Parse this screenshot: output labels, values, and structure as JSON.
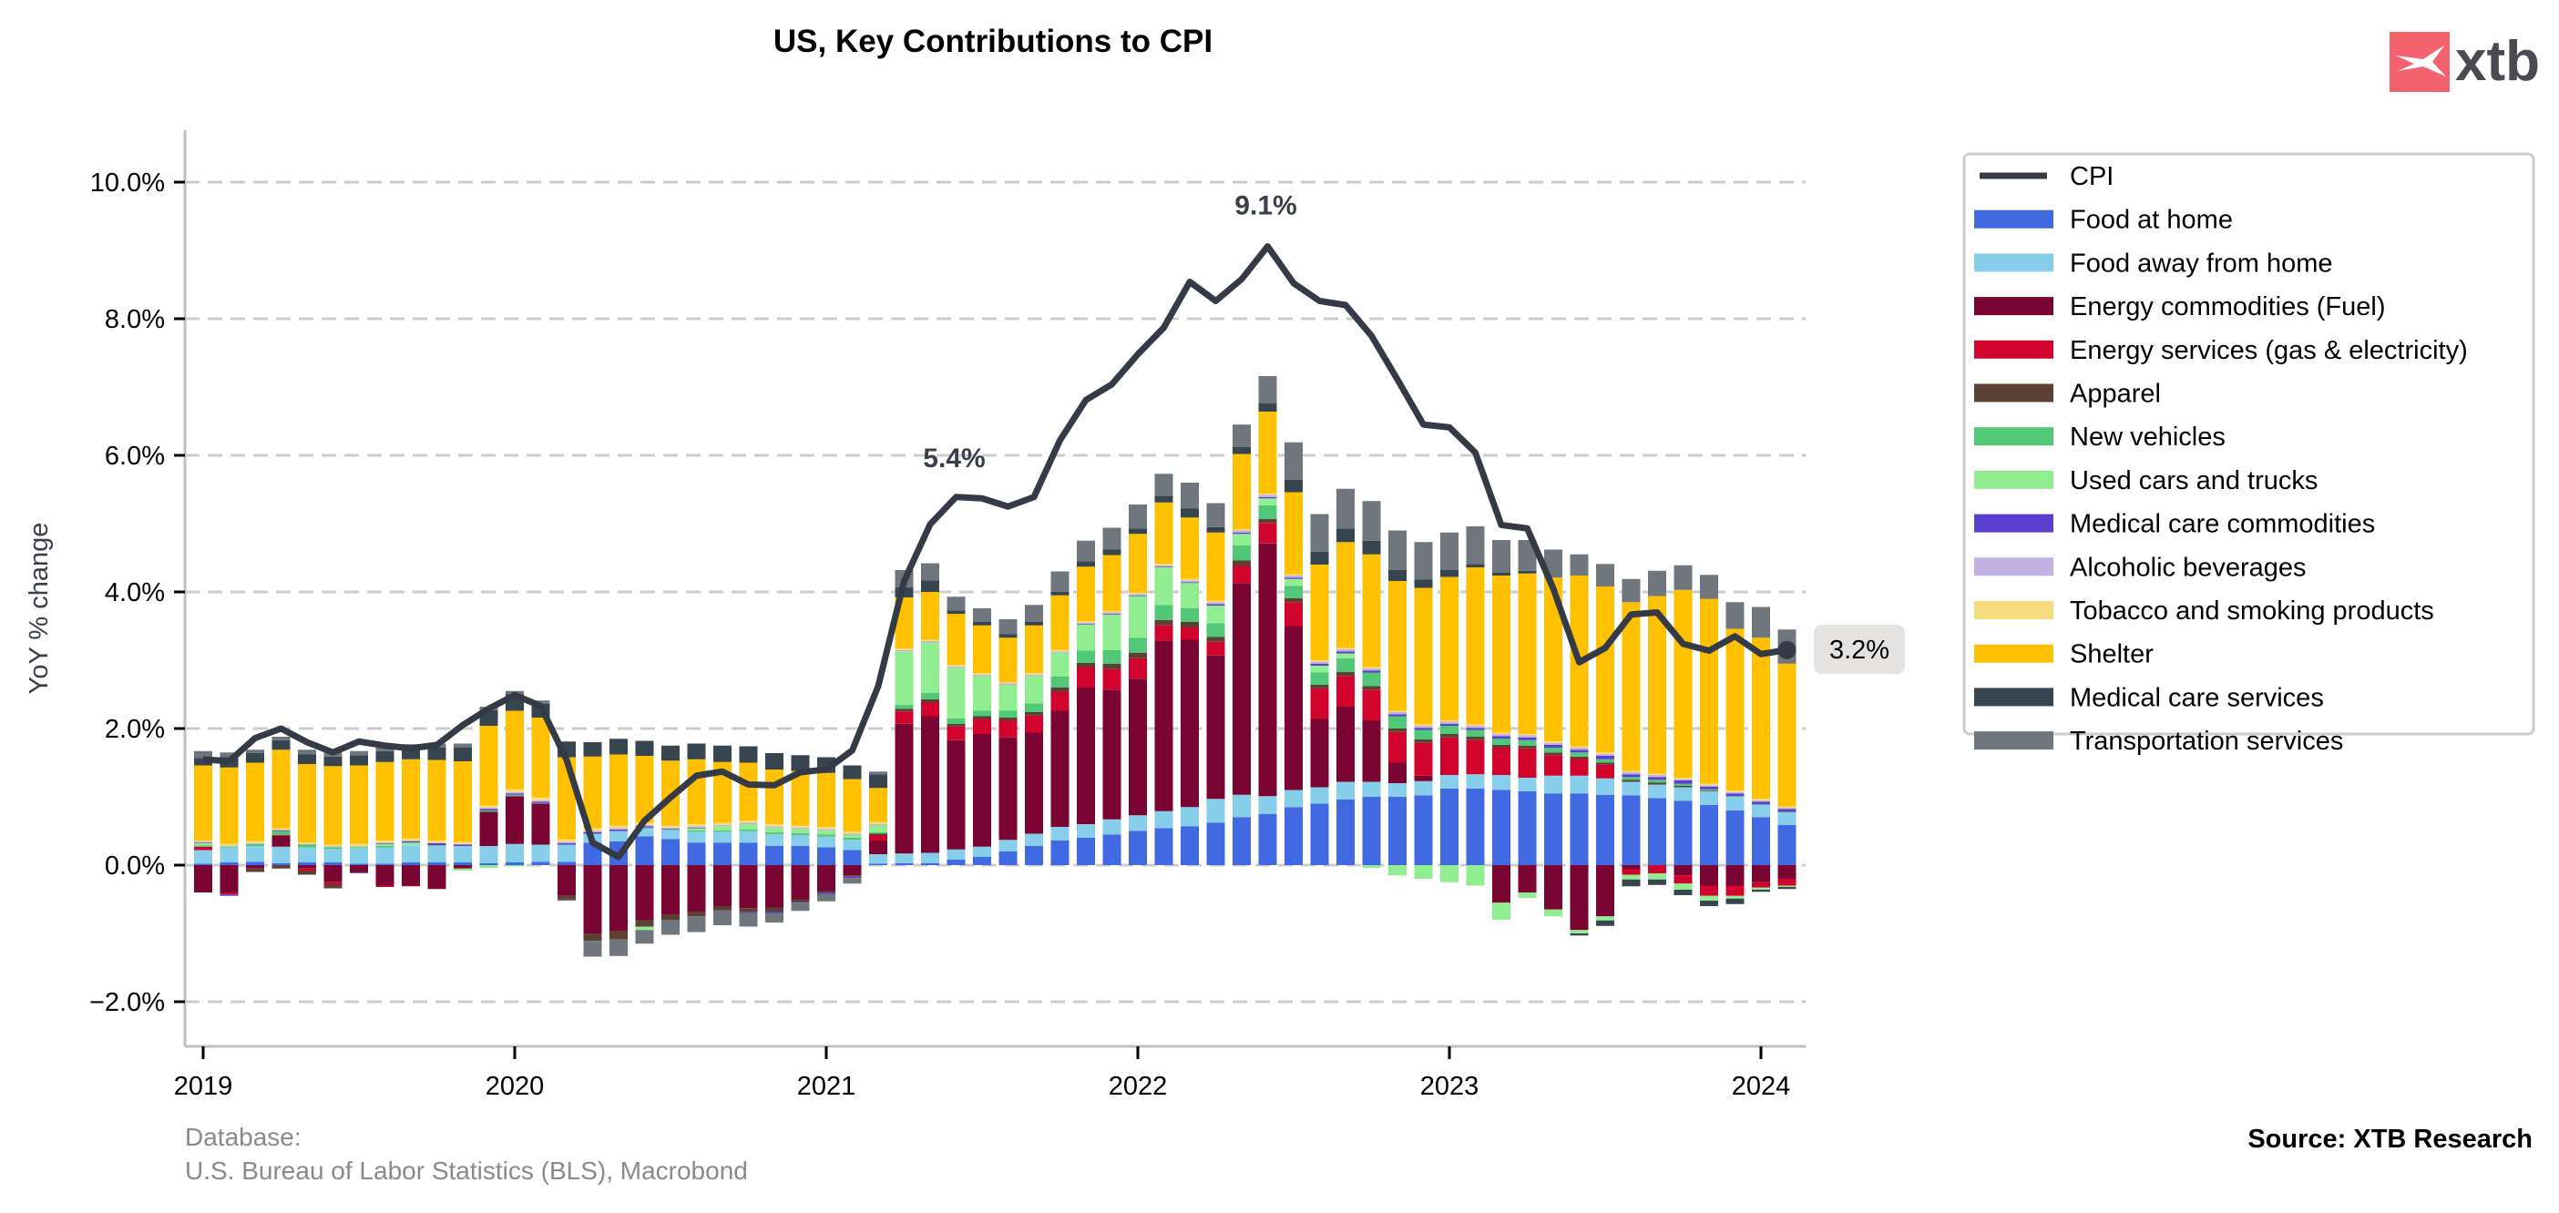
{
  "header": {
    "title": "US, Key Contributions to CPI",
    "logo_text": "xtb",
    "logo_color": "#f4626e"
  },
  "footer": {
    "database_label": "Database:",
    "database_source": "U.S. Bureau of Labor Statistics (BLS), Macrobond",
    "source": "Source: XTB Research"
  },
  "chart_data": {
    "type": "bar",
    "stacked": true,
    "title": "US, Key Contributions to CPI",
    "xlabel": "",
    "ylabel": "YoY % change",
    "ylim": [
      -2.6,
      10.7
    ],
    "yticks": [
      -2.0,
      0.0,
      2.0,
      4.0,
      6.0,
      8.0,
      10.0
    ],
    "ytick_labels": [
      "−2.0%",
      "0.0%",
      "2.0%",
      "4.0%",
      "6.0%",
      "8.0%",
      "10.0%"
    ],
    "xtick_labels": [
      "2019",
      "2020",
      "2021",
      "2022",
      "2023",
      "2024"
    ],
    "grid": "horizontal dashed",
    "legend_position": "right-outside-top",
    "categories": [
      "2019-01",
      "2019-02",
      "2019-03",
      "2019-04",
      "2019-05",
      "2019-06",
      "2019-07",
      "2019-08",
      "2019-09",
      "2019-10",
      "2019-11",
      "2019-12",
      "2020-01",
      "2020-02",
      "2020-03",
      "2020-04",
      "2020-05",
      "2020-06",
      "2020-07",
      "2020-08",
      "2020-09",
      "2020-10",
      "2020-11",
      "2020-12",
      "2021-01",
      "2021-02",
      "2021-03",
      "2021-04",
      "2021-05",
      "2021-06",
      "2021-07",
      "2021-08",
      "2021-09",
      "2021-10",
      "2021-11",
      "2021-12",
      "2022-01",
      "2022-02",
      "2022-03",
      "2022-04",
      "2022-05",
      "2022-06",
      "2022-07",
      "2022-08",
      "2022-09",
      "2022-10",
      "2022-11",
      "2022-12",
      "2023-01",
      "2023-02",
      "2023-03",
      "2023-04",
      "2023-05",
      "2023-06",
      "2023-07",
      "2023-08",
      "2023-09",
      "2023-10",
      "2023-11",
      "2023-12",
      "2024-01",
      "2024-02"
    ],
    "line": {
      "name": "CPI",
      "color": "#353b46",
      "values": [
        1.55,
        1.52,
        1.86,
        2.0,
        1.8,
        1.65,
        1.81,
        1.75,
        1.71,
        1.76,
        2.05,
        2.29,
        2.49,
        2.33,
        1.54,
        0.33,
        0.12,
        0.65,
        0.99,
        1.31,
        1.37,
        1.18,
        1.17,
        1.36,
        1.4,
        1.68,
        2.62,
        4.16,
        4.99,
        5.39,
        5.37,
        5.25,
        5.39,
        6.22,
        6.81,
        7.04,
        7.48,
        7.87,
        8.54,
        8.26,
        8.58,
        9.06,
        8.52,
        8.26,
        8.2,
        7.75,
        7.11,
        6.45,
        6.41,
        6.04,
        4.98,
        4.93,
        4.05,
        2.97,
        3.18,
        3.67,
        3.7,
        3.24,
        3.14,
        3.35,
        3.09,
        3.15
      ]
    },
    "series": [
      {
        "name": "Food at home",
        "color": "#4169e1",
        "values": [
          0.02,
          0.04,
          0.05,
          0.03,
          0.04,
          0.04,
          0.02,
          0.02,
          0.04,
          0.04,
          0.04,
          0.03,
          0.04,
          0.05,
          0.05,
          0.33,
          0.35,
          0.42,
          0.38,
          0.33,
          0.33,
          0.33,
          0.28,
          0.28,
          0.26,
          0.22,
          0.02,
          0.03,
          0.03,
          0.08,
          0.12,
          0.2,
          0.28,
          0.36,
          0.4,
          0.45,
          0.5,
          0.54,
          0.57,
          0.62,
          0.7,
          0.75,
          0.85,
          0.9,
          0.96,
          1.0,
          1.0,
          1.02,
          1.12,
          1.12,
          1.1,
          1.08,
          1.05,
          1.05,
          1.03,
          1.02,
          0.98,
          0.94,
          0.88,
          0.8,
          0.7,
          0.59
        ]
      },
      {
        "name": "Food away from home",
        "color": "#87ceeb",
        "values": [
          0.2,
          0.22,
          0.23,
          0.24,
          0.22,
          0.2,
          0.23,
          0.24,
          0.25,
          0.25,
          0.24,
          0.25,
          0.27,
          0.25,
          0.25,
          0.13,
          0.15,
          0.12,
          0.13,
          0.16,
          0.16,
          0.17,
          0.17,
          0.16,
          0.16,
          0.15,
          0.14,
          0.14,
          0.15,
          0.15,
          0.15,
          0.17,
          0.18,
          0.2,
          0.2,
          0.22,
          0.23,
          0.25,
          0.28,
          0.35,
          0.33,
          0.26,
          0.25,
          0.24,
          0.26,
          0.22,
          0.2,
          0.21,
          0.2,
          0.21,
          0.22,
          0.2,
          0.26,
          0.26,
          0.24,
          0.2,
          0.2,
          0.2,
          0.2,
          0.2,
          0.18,
          0.18
        ]
      },
      {
        "name": "Energy commodities (Fuel)",
        "color": "#7a0532",
        "values": [
          -0.4,
          -0.4,
          -0.05,
          0.16,
          -0.05,
          -0.25,
          -0.1,
          -0.3,
          -0.3,
          -0.35,
          -0.05,
          0.5,
          0.7,
          0.6,
          -0.45,
          -1.0,
          -0.97,
          -0.8,
          -0.72,
          -0.68,
          -0.6,
          -0.63,
          -0.62,
          -0.5,
          -0.38,
          -0.15,
          0.2,
          1.9,
          2.0,
          1.6,
          1.65,
          1.5,
          1.48,
          1.7,
          2.0,
          1.9,
          2.0,
          2.5,
          2.45,
          2.1,
          3.1,
          3.7,
          2.4,
          1.0,
          1.1,
          0.9,
          0.3,
          0.08,
          0.0,
          0.0,
          -0.55,
          -0.4,
          -0.65,
          -0.95,
          -0.75,
          -0.06,
          0.0,
          -0.15,
          -0.3,
          -0.3,
          -0.25,
          -0.2
        ]
      },
      {
        "name": "Energy services (gas & electricity)",
        "color": "#d2042d",
        "values": [
          0.05,
          -0.03,
          0.0,
          0.01,
          -0.03,
          -0.03,
          0.0,
          -0.02,
          -0.01,
          0.0,
          0.0,
          0.0,
          0.0,
          0.0,
          0.0,
          0.0,
          0.0,
          0.0,
          0.0,
          0.0,
          0.0,
          0.0,
          0.0,
          0.0,
          0.0,
          0.0,
          0.08,
          0.18,
          0.2,
          0.2,
          0.22,
          0.25,
          0.25,
          0.28,
          0.3,
          0.3,
          0.3,
          0.22,
          0.18,
          0.2,
          0.25,
          0.3,
          0.35,
          0.45,
          0.45,
          0.45,
          0.45,
          0.48,
          0.55,
          0.5,
          0.4,
          0.43,
          0.3,
          0.25,
          0.2,
          -0.08,
          -0.12,
          -0.12,
          -0.15,
          -0.15,
          -0.08,
          -0.1
        ]
      },
      {
        "name": "Apparel",
        "color": "#5c4033",
        "values": [
          0.0,
          0.0,
          -0.05,
          -0.05,
          -0.06,
          -0.06,
          -0.01,
          0.0,
          0.0,
          0.01,
          0.0,
          0.0,
          0.0,
          0.0,
          -0.05,
          -0.11,
          -0.12,
          -0.1,
          -0.08,
          -0.07,
          -0.06,
          -0.06,
          -0.06,
          -0.04,
          -0.02,
          -0.02,
          0.02,
          0.04,
          0.05,
          0.04,
          0.04,
          0.04,
          0.05,
          0.06,
          0.06,
          0.08,
          0.08,
          0.08,
          0.08,
          0.07,
          0.08,
          0.06,
          0.06,
          0.05,
          0.06,
          0.05,
          0.05,
          0.05,
          0.05,
          0.05,
          0.04,
          0.04,
          0.04,
          0.03,
          0.03,
          0.03,
          0.03,
          0.02,
          0.01,
          0.0,
          0.0,
          0.0
        ]
      },
      {
        "name": "New vehicles",
        "color": "#50c878",
        "values": [
          0.02,
          0.01,
          0.03,
          0.06,
          0.04,
          0.02,
          0.01,
          0.02,
          0.0,
          0.0,
          0.0,
          0.02,
          0.02,
          0.01,
          0.0,
          0.0,
          0.0,
          0.01,
          0.01,
          0.02,
          0.02,
          0.02,
          0.03,
          0.03,
          0.03,
          0.03,
          0.02,
          0.06,
          0.09,
          0.08,
          0.08,
          0.1,
          0.13,
          0.16,
          0.18,
          0.2,
          0.22,
          0.22,
          0.2,
          0.2,
          0.22,
          0.2,
          0.18,
          0.18,
          0.2,
          0.2,
          0.18,
          0.14,
          0.12,
          0.1,
          0.09,
          0.08,
          0.07,
          0.06,
          0.05,
          0.04,
          0.04,
          0.03,
          0.02,
          0.01,
          0.01,
          0.01
        ]
      },
      {
        "name": "Used cars and trucks",
        "color": "#90ee90",
        "values": [
          0.03,
          0.01,
          0.0,
          0.0,
          0.0,
          0.01,
          0.01,
          0.03,
          0.04,
          0.0,
          -0.03,
          -0.04,
          -0.02,
          0.0,
          0.0,
          0.0,
          0.0,
          -0.05,
          0.0,
          0.03,
          0.06,
          0.08,
          0.07,
          0.06,
          0.06,
          0.04,
          0.1,
          0.78,
          0.74,
          0.74,
          0.51,
          0.38,
          0.4,
          0.35,
          0.38,
          0.52,
          0.61,
          0.55,
          0.37,
          0.26,
          0.17,
          0.1,
          0.1,
          0.1,
          0.07,
          -0.04,
          -0.15,
          -0.2,
          -0.25,
          -0.3,
          -0.25,
          -0.08,
          -0.1,
          -0.05,
          -0.06,
          -0.07,
          -0.09,
          -0.09,
          -0.07,
          -0.04,
          -0.03,
          -0.02
        ]
      },
      {
        "name": "Medical care commodities",
        "color": "#5b3fd0",
        "values": [
          0.01,
          -0.02,
          0.0,
          0.01,
          0.0,
          0.0,
          -0.01,
          0.01,
          0.02,
          0.02,
          0.02,
          0.02,
          0.02,
          0.02,
          0.02,
          0.02,
          0.02,
          0.02,
          0.01,
          0.01,
          0.0,
          -0.01,
          -0.02,
          -0.01,
          -0.02,
          -0.02,
          0.0,
          0.0,
          0.0,
          0.0,
          0.0,
          0.0,
          0.0,
          0.0,
          0.01,
          0.01,
          0.01,
          0.01,
          0.01,
          0.02,
          0.02,
          0.02,
          0.02,
          0.03,
          0.03,
          0.03,
          0.03,
          0.03,
          0.03,
          0.03,
          0.04,
          0.04,
          0.04,
          0.04,
          0.05,
          0.04,
          0.04,
          0.05,
          0.04,
          0.04,
          0.04,
          0.04
        ]
      },
      {
        "name": "Alcoholic beverages",
        "color": "#c3b1e1",
        "values": [
          0.01,
          0.01,
          0.01,
          0.01,
          0.01,
          0.01,
          0.01,
          0.01,
          0.01,
          0.01,
          0.01,
          0.02,
          0.02,
          0.02,
          0.02,
          0.02,
          0.02,
          0.02,
          0.02,
          0.02,
          0.02,
          0.02,
          0.02,
          0.02,
          0.02,
          0.02,
          0.02,
          0.02,
          0.02,
          0.02,
          0.02,
          0.02,
          0.02,
          0.02,
          0.02,
          0.02,
          0.02,
          0.02,
          0.03,
          0.03,
          0.03,
          0.03,
          0.03,
          0.03,
          0.03,
          0.03,
          0.03,
          0.03,
          0.03,
          0.03,
          0.03,
          0.03,
          0.03,
          0.03,
          0.03,
          0.03,
          0.03,
          0.02,
          0.02,
          0.02,
          0.02,
          0.02
        ]
      },
      {
        "name": "Tobacco and smoking products",
        "color": "#f7dc7f",
        "values": [
          0.02,
          0.02,
          0.03,
          0.02,
          0.02,
          0.02,
          0.03,
          0.03,
          0.03,
          0.03,
          0.03,
          0.03,
          0.04,
          0.04,
          0.04,
          0.04,
          0.04,
          0.03,
          0.03,
          0.03,
          0.03,
          0.03,
          0.03,
          0.03,
          0.03,
          0.03,
          0.03,
          0.02,
          0.02,
          0.02,
          0.02,
          0.02,
          0.02,
          0.02,
          0.02,
          0.02,
          0.02,
          0.02,
          0.02,
          0.02,
          0.02,
          0.02,
          0.02,
          0.02,
          0.02,
          0.02,
          0.02,
          0.02,
          0.02,
          0.02,
          0.02,
          0.02,
          0.02,
          0.02,
          0.02,
          0.02,
          0.02,
          0.02,
          0.02,
          0.02,
          0.02,
          0.02
        ]
      },
      {
        "name": "Shelter",
        "color": "#ffc000",
        "values": [
          1.1,
          1.12,
          1.15,
          1.15,
          1.15,
          1.15,
          1.15,
          1.15,
          1.16,
          1.18,
          1.18,
          1.17,
          1.15,
          1.17,
          1.2,
          1.05,
          1.04,
          0.98,
          0.95,
          0.95,
          0.89,
          0.85,
          0.8,
          0.8,
          0.79,
          0.77,
          0.5,
          0.75,
          0.7,
          0.75,
          0.7,
          0.65,
          0.7,
          0.8,
          0.8,
          0.82,
          0.86,
          0.9,
          0.9,
          1.0,
          1.1,
          1.2,
          1.2,
          1.4,
          1.55,
          1.65,
          1.9,
          2.0,
          2.1,
          2.3,
          2.3,
          2.35,
          2.4,
          2.5,
          2.43,
          2.47,
          2.6,
          2.75,
          2.71,
          2.37,
          2.36,
          2.09
        ]
      },
      {
        "name": "Medical care services",
        "color": "#36454f",
        "values": [
          0.11,
          0.15,
          0.14,
          0.14,
          0.14,
          0.14,
          0.15,
          0.16,
          0.16,
          0.18,
          0.2,
          0.23,
          0.24,
          0.2,
          0.23,
          0.21,
          0.23,
          0.22,
          0.22,
          0.23,
          0.24,
          0.24,
          0.24,
          0.23,
          0.23,
          0.2,
          0.2,
          0.15,
          0.17,
          0.05,
          0.05,
          0.05,
          0.05,
          0.05,
          0.08,
          0.08,
          0.08,
          0.1,
          0.13,
          0.08,
          0.1,
          0.12,
          0.18,
          0.19,
          0.2,
          0.2,
          0.16,
          0.12,
          0.1,
          0.05,
          0.04,
          0.04,
          0.0,
          -0.03,
          -0.08,
          -0.1,
          -0.08,
          -0.08,
          -0.08,
          -0.08,
          -0.03,
          -0.03
        ]
      },
      {
        "name": "Transportation services",
        "color": "#6f767d",
        "values": [
          0.1,
          0.07,
          0.05,
          0.05,
          0.07,
          0.06,
          0.06,
          0.06,
          0.06,
          0.06,
          0.06,
          0.05,
          0.05,
          0.05,
          -0.02,
          -0.23,
          -0.24,
          -0.2,
          -0.22,
          -0.23,
          -0.22,
          -0.2,
          -0.14,
          -0.12,
          -0.11,
          -0.08,
          0.04,
          0.25,
          0.25,
          0.2,
          0.2,
          0.22,
          0.25,
          0.3,
          0.3,
          0.32,
          0.35,
          0.32,
          0.38,
          0.35,
          0.33,
          0.4,
          0.55,
          0.55,
          0.58,
          0.58,
          0.58,
          0.55,
          0.55,
          0.55,
          0.48,
          0.45,
          0.41,
          0.31,
          0.33,
          0.34,
          0.37,
          0.36,
          0.35,
          0.39,
          0.45,
          0.5
        ]
      }
    ],
    "annotations": [
      {
        "text": "5.4%",
        "x": "2021-06",
        "y": 5.4
      },
      {
        "text": "9.1%",
        "x": "2022-06",
        "y": 9.1
      }
    ],
    "end_label": {
      "text": "3.2%",
      "x": "2024-02",
      "y": 3.2
    }
  }
}
